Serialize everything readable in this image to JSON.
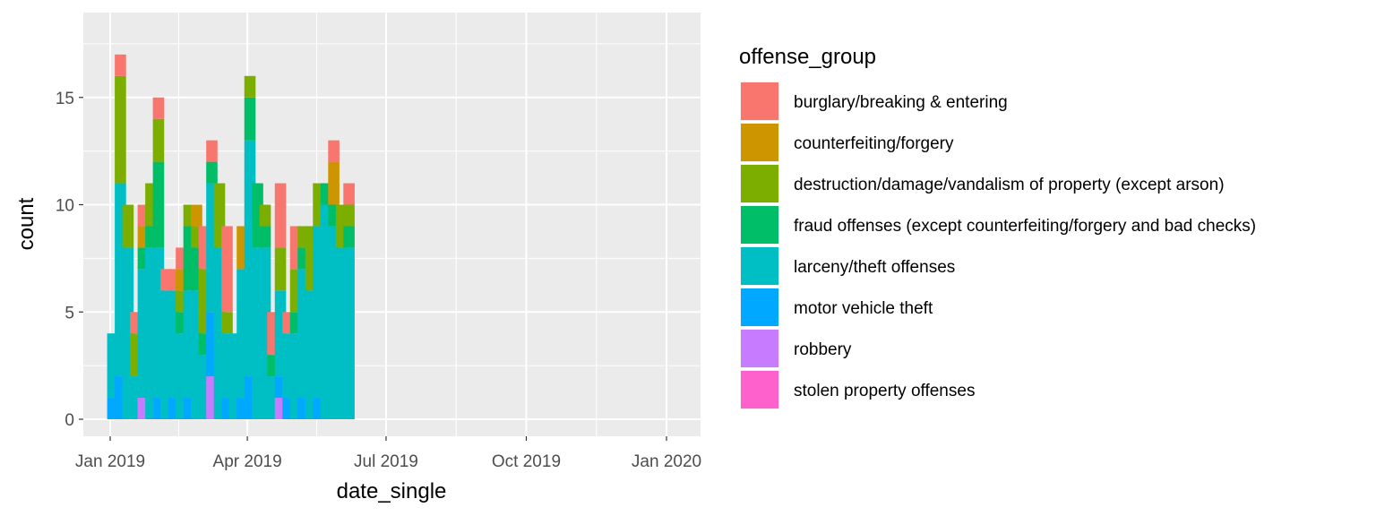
{
  "chart_data": {
    "type": "bar",
    "stacked": true,
    "histogram": true,
    "xlabel": "date_single",
    "ylabel": "count",
    "x_ticks": [
      "Jan 2019",
      "Apr 2019",
      "Jul 2019",
      "Oct 2019",
      "Jan 2020"
    ],
    "y_ticks": [
      "0",
      "5",
      "10",
      "15"
    ],
    "ylim": [
      0,
      18
    ],
    "grid": true,
    "legend": {
      "title": "offense_group",
      "placement": "right"
    },
    "groups": [
      {
        "name": "burglary/breaking & entering",
        "color": "#F8766D"
      },
      {
        "name": "counterfeiting/forgery",
        "color": "#CD9600"
      },
      {
        "name": "destruction/damage/vandalism of property (except arson)",
        "color": "#7CAE00"
      },
      {
        "name": "fraud offenses (except counterfeiting/forgery and bad checks)",
        "color": "#00BE67"
      },
      {
        "name": "larceny/theft offenses",
        "color": "#00BFC4"
      },
      {
        "name": "motor vehicle theft",
        "color": "#00A9FF"
      },
      {
        "name": "robbery",
        "color": "#C77CFF"
      },
      {
        "name": "stolen property offenses",
        "color": "#FF61CC"
      }
    ],
    "stack_order_bottom_to_top": [
      "stolen property offenses",
      "robbery",
      "motor vehicle theft",
      "larceny/theft offenses",
      "fraud offenses (except counterfeiting/forgery and bad checks)",
      "destruction/damage/vandalism of property (except arson)",
      "counterfeiting/forgery",
      "burglary/breaking & entering"
    ],
    "bins": [
      {
        "start": "2018-12-30",
        "mv": 1,
        "lar": 3
      },
      {
        "start": "2019-01-04",
        "mv": 2,
        "lar": 9,
        "des": 5,
        "bur": 1
      },
      {
        "start": "2019-01-09",
        "lar": 8,
        "des": 2
      },
      {
        "start": "2019-01-14",
        "lar": 2,
        "des": 2,
        "bur": 1
      },
      {
        "start": "2019-01-19",
        "rob": 1,
        "lar": 6,
        "fra": 1,
        "cou": 1,
        "bur": 1
      },
      {
        "start": "2019-01-24",
        "lar": 8,
        "fra": 1,
        "des": 2
      },
      {
        "start": "2019-01-29",
        "mv": 1,
        "lar": 7,
        "fra": 4,
        "des": 2,
        "bur": 1
      },
      {
        "start": "2019-02-03",
        "lar": 6,
        "bur": 1
      },
      {
        "start": "2019-02-08",
        "mv": 1,
        "lar": 5,
        "bur": 1
      },
      {
        "start": "2019-02-13",
        "lar": 4,
        "fra": 1,
        "cou": 1,
        "des": 1,
        "bur": 1
      },
      {
        "start": "2019-02-18",
        "mv": 1,
        "lar": 5,
        "fra": 3,
        "des": 1
      },
      {
        "start": "2019-02-23",
        "lar": 6,
        "fra": 2,
        "cou": 1,
        "des": 1
      },
      {
        "start": "2019-02-28",
        "lar": 3,
        "fra": 1,
        "des": 3,
        "bur": 2
      },
      {
        "start": "2019-03-05",
        "rob": 2,
        "mv": 3,
        "lar": 6,
        "fra": 1,
        "bur": 1
      },
      {
        "start": "2019-03-10",
        "lar": 8,
        "des": 3
      },
      {
        "start": "2019-03-15",
        "mv": 1,
        "lar": 3,
        "des": 1,
        "bur": 4
      },
      {
        "start": "2019-03-20",
        "lar": 4
      },
      {
        "start": "2019-03-25",
        "mv": 1,
        "lar": 6,
        "cou": 2
      },
      {
        "start": "2019-03-30",
        "mv": 2,
        "lar": 11,
        "des": 1,
        "fra": 2
      },
      {
        "start": "2019-04-04",
        "lar": 8,
        "fra": 3
      },
      {
        "start": "2019-04-09",
        "lar": 8,
        "fra": 1,
        "des": 1
      },
      {
        "start": "2019-04-14",
        "lar": 2,
        "fra": 1,
        "bur": 2
      },
      {
        "start": "2019-04-19",
        "mv": 1,
        "rob": 1,
        "lar": 4,
        "des": 2,
        "bur": 3
      },
      {
        "start": "2019-04-24",
        "mv": 1,
        "lar": 3,
        "bur": 1
      },
      {
        "start": "2019-04-29",
        "lar": 4,
        "des": 2,
        "fra": 1,
        "bur": 2
      },
      {
        "start": "2019-05-04",
        "mv": 1,
        "lar": 6,
        "fra": 1,
        "des": 1
      },
      {
        "start": "2019-05-09",
        "lar": 6,
        "des": 3
      },
      {
        "start": "2019-05-14",
        "mv": 1,
        "lar": 8,
        "des": 2
      },
      {
        "start": "2019-05-19",
        "lar": 10,
        "fra": 1
      },
      {
        "start": "2019-05-24",
        "lar": 9,
        "fra": 1,
        "cou": 2,
        "bur": 1
      },
      {
        "start": "2019-05-29",
        "lar": 8,
        "des": 2
      },
      {
        "start": "2019-06-03",
        "lar": 8,
        "fra": 1,
        "des": 1,
        "bur": 1
      }
    ]
  }
}
